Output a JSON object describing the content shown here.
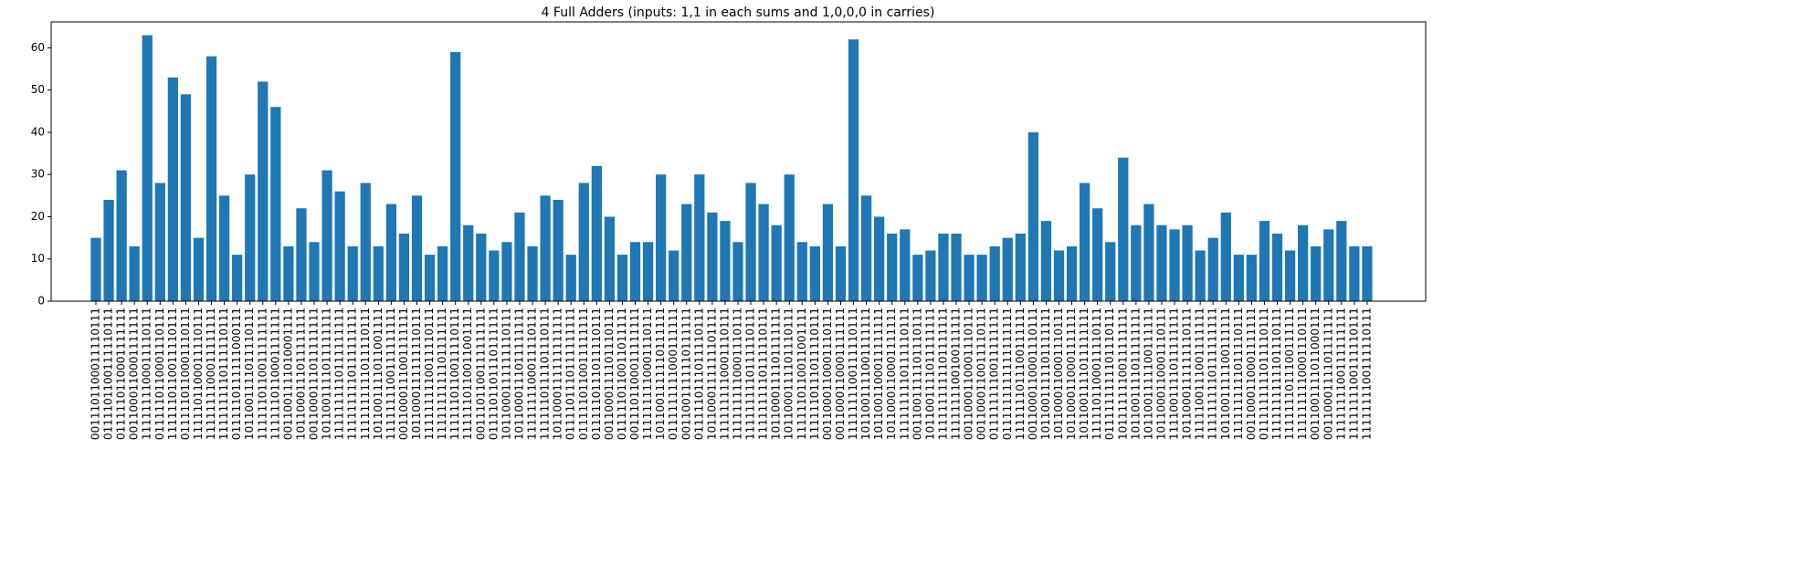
{
  "chart_data": {
    "type": "bar",
    "title": "4 Full Adders (inputs: 1,1 in each sums and 1,0,0,0 in carries)",
    "categories": [
      "0011101100011110111",
      "0111101100111110111",
      "0111110110001111111",
      "0011000110001111111",
      "1111111100011110111",
      "0111110110001110111",
      "1111110110011110111",
      "0111110110001110111",
      "1111101100011110111",
      "1111111100011111111",
      "1111111110111110111",
      "0111110111111000111",
      "1011001111011110111",
      "1111110110011111111",
      "1111110110001111111",
      "0011001111010001111",
      "1011000111011111111",
      "0011000111011111111",
      "1011001111011111111",
      "1111111110111111111",
      "1111111110111111111",
      "1111111111011110111",
      "1011001111011001111",
      "1111111100111111111",
      "0011000111001111111",
      "1011000111111110111",
      "1111111110011110111",
      "1111111111101111111",
      "1111110110011110111",
      "1111110110011001111",
      "0011101100111111111",
      "0111101101110111111",
      "1011000111111110111",
      "1011000111011111111",
      "1111111100011110111",
      "1111110111101110111",
      "1011000111111111111",
      "0111101110111111111",
      "0111110110011111111",
      "0111110111011110111",
      "0011000111101110111",
      "0111110110011011111",
      "0011101100011111111",
      "1111111110001110111",
      "1011001111110111111",
      "0111111111000111111",
      "0011001111110111111",
      "0111110111011110111",
      "1011000111111101111",
      "1111111110001110111",
      "1111111110001110111",
      "1111111110111110111",
      "1111111110111110111",
      "1011000111101111111",
      "1011000111101110111",
      "1111110110011001111",
      "1111110111011110111",
      "0011000110001110111",
      "0011000110001111111",
      "1111111100111110111",
      "1011001111001111111",
      "1011001100011111111",
      "1011000110001111111",
      "1111111110111110111",
      "0011001111101110111",
      "1011001111011111111",
      "1111111111101111111",
      "1111111100100111111",
      "0011000110001110111",
      "0011000110011110111",
      "0111111110011111111",
      "0111111111111111111",
      "1111111011100111111",
      "0011000110001110111",
      "1011001111101111111",
      "1011000110001110111",
      "1011000110001111111",
      "1011001111011111111",
      "1111101100011110111",
      "0111111111101110111",
      "1011111110011111111",
      "1011001111011111111",
      "1011001111100111111",
      "1011000110001110111",
      "1111001111011111111",
      "1011000111111110111",
      "1111100111001111111",
      "1111111110111111111",
      "1011001111100111111",
      "1111111111011110111",
      "0011000110001111111",
      "0111111111011110111",
      "1111111111101110111",
      "1111111011100111111",
      "1111111110001110111",
      "0011001111011000111",
      "0011000111101111111",
      "1111111100111111111",
      "1111111100111110111",
      "1111111100111110111"
    ],
    "values": [
      15,
      24,
      31,
      13,
      63,
      28,
      53,
      49,
      15,
      58,
      25,
      11,
      30,
      52,
      46,
      13,
      22,
      14,
      31,
      26,
      13,
      28,
      13,
      23,
      16,
      25,
      11,
      13,
      59,
      18,
      16,
      12,
      14,
      21,
      13,
      25,
      24,
      11,
      28,
      32,
      20,
      11,
      14,
      14,
      30,
      12,
      23,
      30,
      21,
      19,
      14,
      28,
      23,
      18,
      30,
      14,
      13,
      23,
      13,
      62,
      25,
      20,
      16,
      17,
      11,
      12,
      16,
      16,
      11,
      11,
      13,
      15,
      16,
      40,
      19,
      12,
      13,
      28,
      22,
      14,
      34,
      18,
      23,
      18,
      17,
      18,
      12,
      15,
      21,
      11,
      11,
      19,
      16,
      12,
      18,
      13,
      17,
      19,
      13,
      13
    ],
    "color": "#1f77b4",
    "ylim": [
      0,
      66.15
    ],
    "yticks": [
      0,
      10,
      20,
      30,
      40,
      50,
      60
    ]
  }
}
